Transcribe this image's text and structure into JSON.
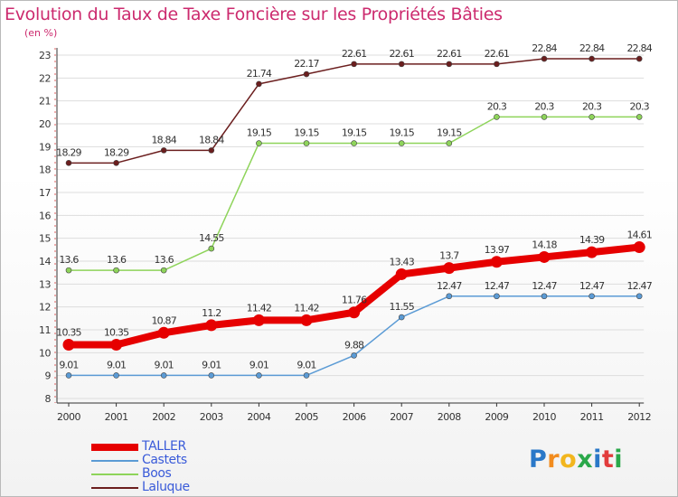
{
  "chart_data": {
    "type": "line",
    "title": "Evolution du Taux de Taxe Foncière sur les Propriétés Bâties",
    "unit_label": "(en %)",
    "xlabel": "",
    "ylabel": "",
    "x": [
      "2000",
      "2001",
      "2002",
      "2003",
      "2004",
      "2005",
      "2006",
      "2007",
      "2008",
      "2009",
      "2010",
      "2011",
      "2012"
    ],
    "ylim": [
      8,
      23
    ],
    "yticks": [
      "8",
      "9",
      "10",
      "11",
      "12",
      "13",
      "14",
      "15",
      "16",
      "17",
      "18",
      "19",
      "20",
      "21",
      "22",
      "23"
    ],
    "grid": "horizontal",
    "legend_position": "bottom-left",
    "series": [
      {
        "name": "TALLER",
        "color": "#e60000",
        "emphasized": true,
        "values": [
          10.35,
          10.35,
          10.87,
          11.2,
          11.42,
          11.42,
          11.76,
          13.43,
          13.7,
          13.97,
          14.18,
          14.39,
          14.61
        ],
        "labels": [
          "10.35",
          "10.35",
          "10.87",
          "11.2",
          "11.42",
          "11.42",
          "11.76",
          "13.43",
          "13.7",
          "13.97",
          "14.18",
          "14.39",
          "14.61"
        ]
      },
      {
        "name": "Castets",
        "color": "#5b9bd5",
        "emphasized": false,
        "values": [
          9.01,
          9.01,
          9.01,
          9.01,
          9.01,
          9.01,
          9.88,
          11.55,
          12.47,
          12.47,
          12.47,
          12.47,
          12.47
        ],
        "labels": [
          "9.01",
          "9.01",
          "9.01",
          "9.01",
          "9.01",
          "9.01",
          "9.88",
          "11.55",
          "12.47",
          "12.47",
          "12.47",
          "12.47",
          "12.47"
        ]
      },
      {
        "name": "Boos",
        "color": "#8ed45a",
        "emphasized": false,
        "values": [
          13.6,
          13.6,
          13.6,
          14.55,
          19.15,
          19.15,
          19.15,
          19.15,
          19.15,
          20.3,
          20.3,
          20.3,
          20.3
        ],
        "labels": [
          "13.6",
          "13.6",
          "13.6",
          "14.55",
          "19.15",
          "19.15",
          "19.15",
          "19.15",
          "19.15",
          "20.3",
          "20.3",
          "20.3",
          "20.3"
        ]
      },
      {
        "name": "Laluque",
        "color": "#6b1e1e",
        "emphasized": false,
        "values": [
          18.29,
          18.29,
          18.84,
          18.84,
          21.74,
          22.17,
          22.61,
          22.61,
          22.61,
          22.61,
          22.84,
          22.84,
          22.84
        ],
        "labels": [
          "18.29",
          "18.29",
          "18.84",
          "18.84",
          "21.74",
          "22.17",
          "22.61",
          "22.61",
          "22.61",
          "22.61",
          "22.84",
          "22.84",
          "22.84"
        ]
      }
    ]
  },
  "legend_label_color": "#3a5bd9",
  "logo": {
    "letters": [
      "P",
      "r",
      "o",
      "x",
      "i",
      "t",
      "i"
    ],
    "colors": [
      "#2a78c8",
      "#f28c1e",
      "#f2b61e",
      "#2aa84a",
      "#2a78c8",
      "#e23c3c",
      "#2aa84a"
    ]
  }
}
